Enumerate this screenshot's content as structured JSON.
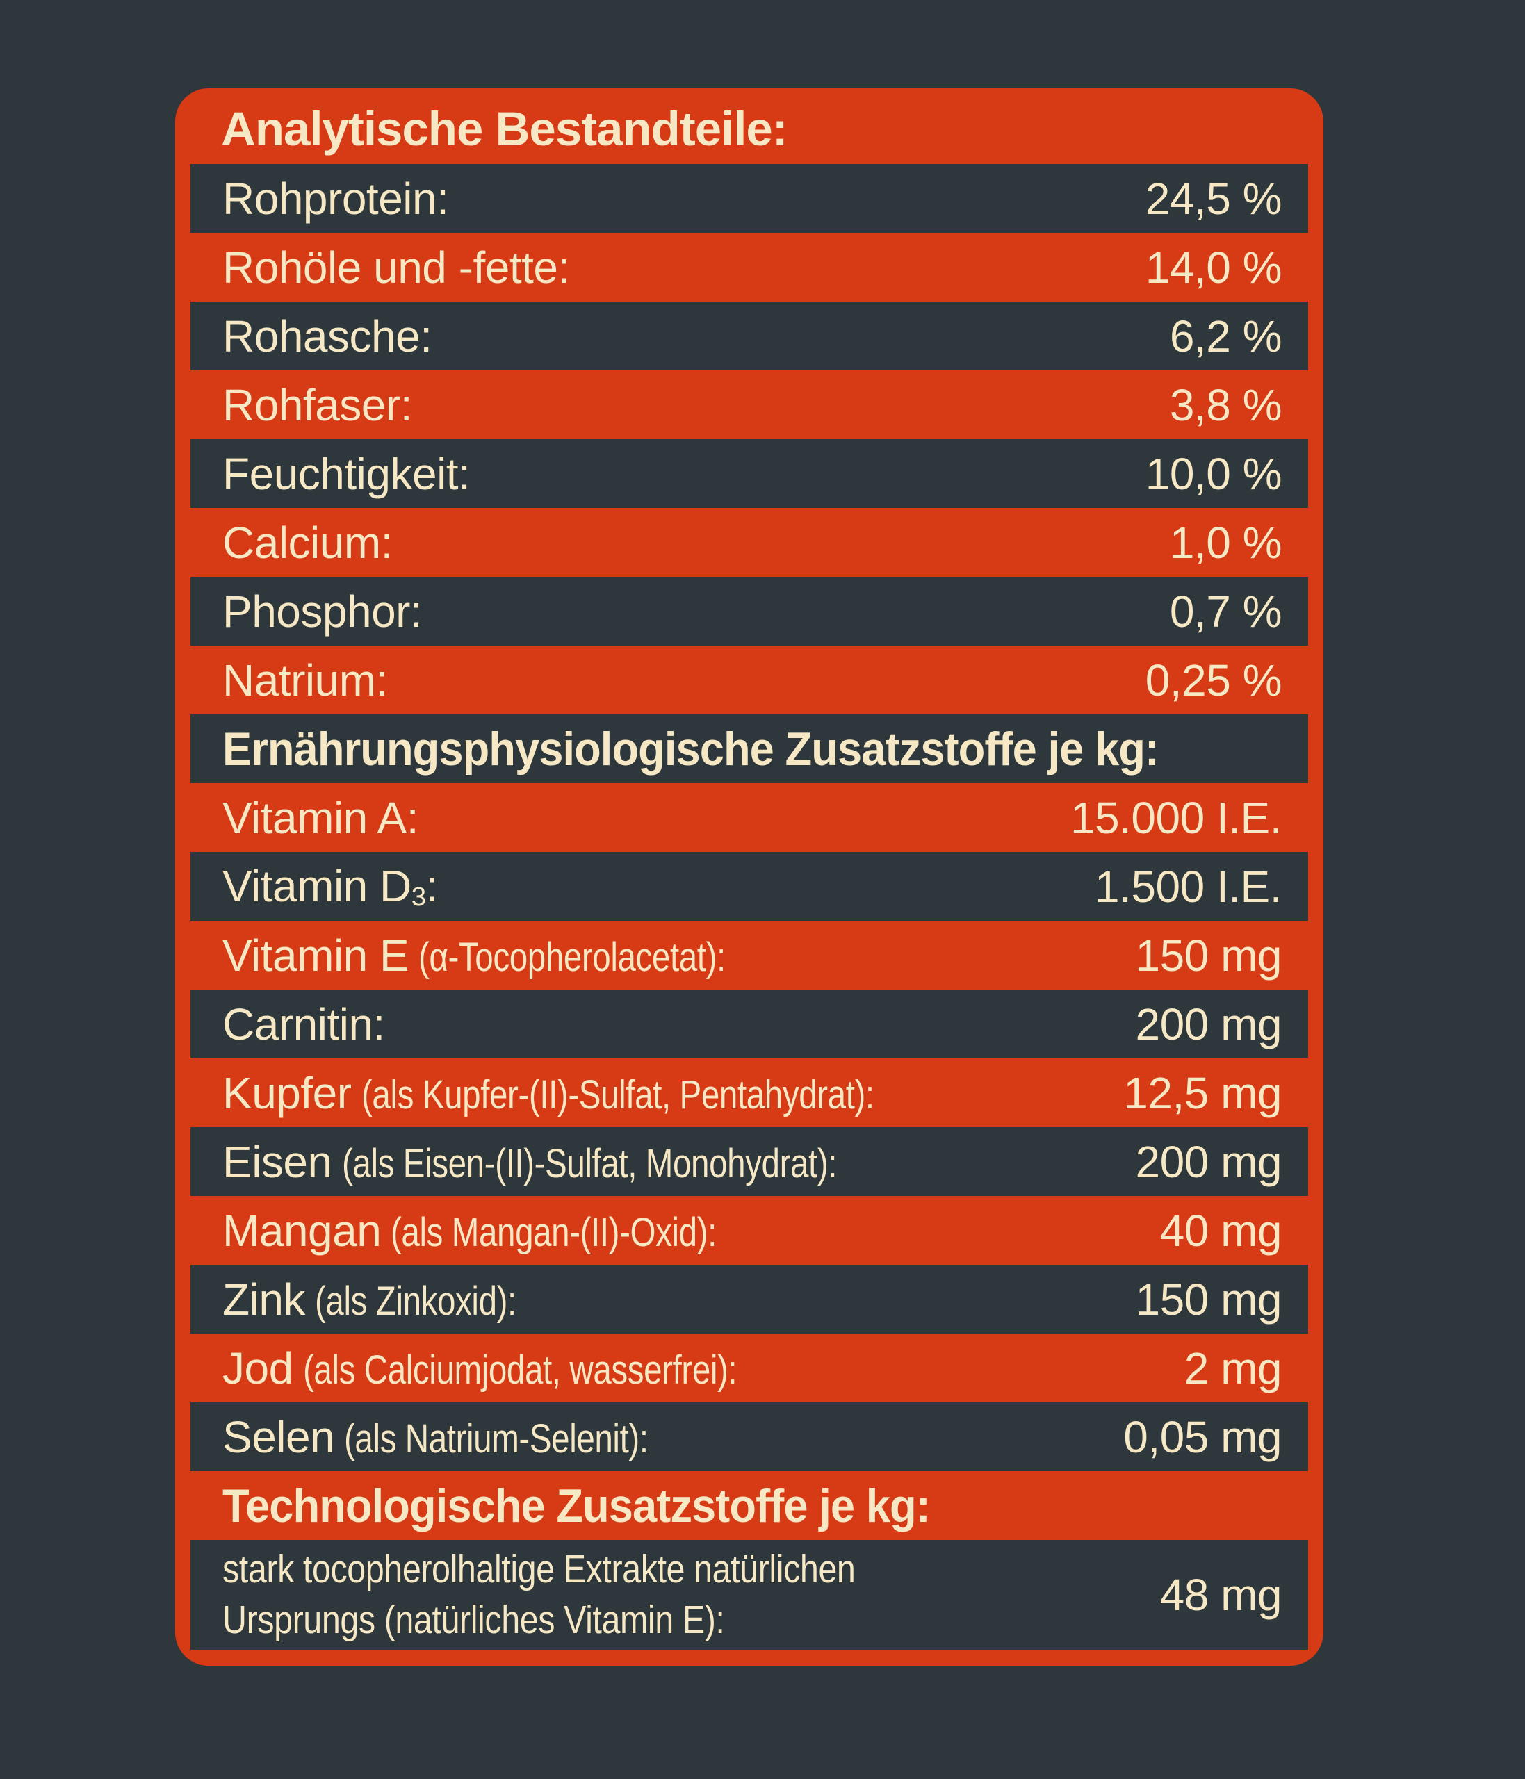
{
  "colors": {
    "page_background": "#2e383c",
    "card_background": "#d63b15",
    "dark_row_background": "#2e383c",
    "text_cream": "#f6e8c5"
  },
  "label": {
    "title": "Analytische Bestandteile:",
    "analytical": {
      "rows": [
        {
          "name": "Rohprotein:",
          "value": "24,5 %"
        },
        {
          "name": "Rohöle und -fette:",
          "value": "14,0 %"
        },
        {
          "name": "Rohasche:",
          "value": "6,2 %"
        },
        {
          "name": "Rohfaser:",
          "value": "3,8 %"
        },
        {
          "name": "Feuchtigkeit:",
          "value": "10,0 %"
        },
        {
          "name": "Calcium:",
          "value": "1,0 %"
        },
        {
          "name": "Phosphor:",
          "value": "0,7 %"
        },
        {
          "name": "Natrium:",
          "value": "0,25 %"
        }
      ]
    },
    "nutritional": {
      "header": "Ernährungsphysiologische Zusatzstoffe je kg:",
      "rows": [
        {
          "name": "Vitamin A:",
          "value": "15.000 I.E."
        },
        {
          "name": "Vitamin D",
          "sub": "3",
          "name_end": ":",
          "value": "1.500 I.E."
        },
        {
          "name": "Vitamin E",
          "detail": "(α-Tocopherolacetat):",
          "value": "150 mg"
        },
        {
          "name": "Carnitin:",
          "value": "200 mg"
        },
        {
          "name": "Kupfer",
          "detail": "(als Kupfer-(II)-Sulfat, Pentahydrat):",
          "value": "12,5 mg"
        },
        {
          "name": "Eisen",
          "detail": "(als Eisen-(II)-Sulfat, Monohydrat):",
          "value": "200 mg"
        },
        {
          "name": "Mangan",
          "detail": "(als Mangan-(II)-Oxid):",
          "value": "40 mg"
        },
        {
          "name": "Zink",
          "detail": "(als Zinkoxid):",
          "value": "150 mg"
        },
        {
          "name": "Jod",
          "detail": "(als Calciumjodat, wasserfrei):",
          "value": "2 mg"
        },
        {
          "name": "Selen",
          "detail": "(als Natrium-Selenit):",
          "value": "0,05 mg"
        }
      ]
    },
    "technological": {
      "header": "Technologische Zusatzstoffe je kg:",
      "rows": [
        {
          "name_line1": "stark tocopherolhaltige Extrakte natürlichen",
          "name_line2": "Ursprungs (natürliches Vitamin E):",
          "value": "48 mg"
        }
      ]
    }
  }
}
